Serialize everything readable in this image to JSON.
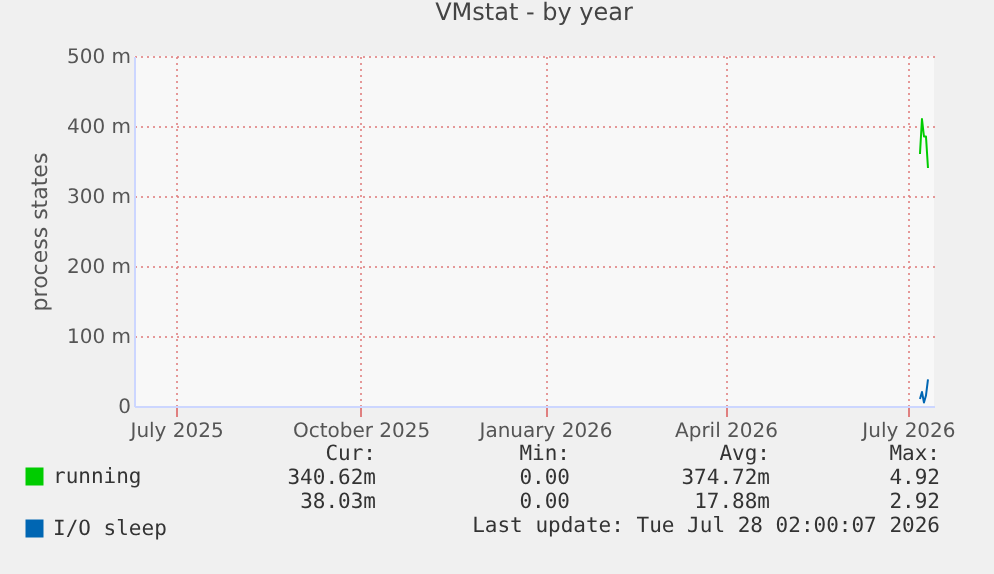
{
  "chart_data": {
    "type": "line",
    "title": "VMstat - by year",
    "ylabel": "process states",
    "x": [
      "2026-07-07",
      "2026-07-08",
      "2026-07-09",
      "2026-07-10",
      "2026-07-11"
    ],
    "series": [
      {
        "name": "running",
        "color": "#00cc00",
        "values": [
          360,
          410,
          385,
          385,
          340
        ]
      },
      {
        "name": "I/O sleep",
        "color": "#0066b3",
        "values": [
          10,
          20,
          5,
          15,
          38
        ]
      }
    ],
    "xlim": [
      "2025-06-10",
      "2026-07-14"
    ],
    "xticks": [
      {
        "value": "2025-07-01",
        "label": "July 2025"
      },
      {
        "value": "2025-10-01",
        "label": "October 2025"
      },
      {
        "value": "2026-01-01",
        "label": "January 2026"
      },
      {
        "value": "2026-04-01",
        "label": "April 2026"
      },
      {
        "value": "2026-07-01",
        "label": "July 2026"
      }
    ],
    "ylim": [
      0,
      500
    ],
    "yticks": [
      0,
      {
        "value": 100,
        "label": "100 m"
      },
      {
        "value": 200,
        "label": "200 m"
      },
      {
        "value": 300,
        "label": "300 m"
      },
      {
        "value": 400,
        "label": "400 m"
      },
      {
        "value": 500,
        "label": "500 m"
      }
    ],
    "grid": true,
    "legend": "bottom left",
    "annotations": [
      "Cur:",
      "Min:",
      "Avg:",
      "Max:",
      "340.62m",
      "0.00",
      "374.72m",
      "4.92",
      "38.03m",
      "0.00",
      "17.88m",
      "2.92",
      "Last update: Tue Jul 28 02:00:07 2026"
    ]
  }
}
